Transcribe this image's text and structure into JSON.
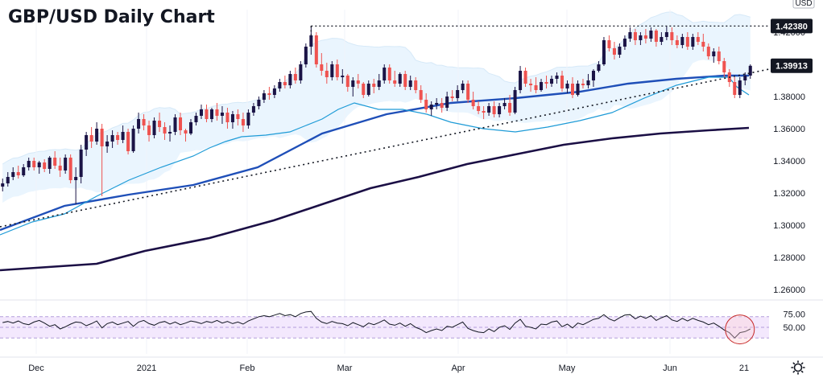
{
  "chart_data": {
    "type": "candlestick",
    "title": "GBP/USD Daily Chart",
    "currency_label": "USD",
    "price_axis": {
      "ylim": [
        1.254,
        1.434
      ],
      "ticks": [
        "1.42000",
        "1.40000",
        "1.38000",
        "1.36000",
        "1.34000",
        "1.32000",
        "1.30000",
        "1.28000",
        "1.26000"
      ]
    },
    "rsi_axis": {
      "ylim": [
        0,
        100
      ],
      "ticks": [
        "75.00",
        "50.00"
      ],
      "band": [
        30,
        70
      ]
    },
    "x_ticks": [
      "Dec",
      "2021",
      "Feb",
      "Mar",
      "Apr",
      "May",
      "Jun",
      "21"
    ],
    "resistance": {
      "value": 1.4238,
      "label": "1.42380"
    },
    "last_price": {
      "value": 1.39913,
      "label": "1.39913"
    },
    "trendline": {
      "start": 1.299,
      "end": 1.397
    },
    "candles": [
      [
        1.324,
        1.329,
        1.321,
        1.326
      ],
      [
        1.326,
        1.333,
        1.324,
        1.33
      ],
      [
        1.33,
        1.336,
        1.328,
        1.333
      ],
      [
        1.333,
        1.337,
        1.329,
        1.331
      ],
      [
        1.331,
        1.338,
        1.33,
        1.336
      ],
      [
        1.336,
        1.342,
        1.334,
        1.34
      ],
      [
        1.34,
        1.342,
        1.334,
        1.336
      ],
      [
        1.336,
        1.34,
        1.332,
        1.339
      ],
      [
        1.339,
        1.341,
        1.333,
        1.335
      ],
      [
        1.335,
        1.343,
        1.332,
        1.342
      ],
      [
        1.342,
        1.346,
        1.335,
        1.337
      ],
      [
        1.337,
        1.342,
        1.33,
        1.334
      ],
      [
        1.334,
        1.344,
        1.332,
        1.342
      ],
      [
        1.342,
        1.344,
        1.326,
        1.328
      ],
      [
        1.328,
        1.336,
        1.313,
        1.33
      ],
      [
        1.33,
        1.35,
        1.326,
        1.347
      ],
      [
        1.347,
        1.358,
        1.343,
        1.356
      ],
      [
        1.356,
        1.361,
        1.348,
        1.352
      ],
      [
        1.352,
        1.364,
        1.35,
        1.36
      ],
      [
        1.36,
        1.363,
        1.318,
        1.349
      ],
      [
        1.349,
        1.356,
        1.345,
        1.352
      ],
      [
        1.352,
        1.359,
        1.348,
        1.356
      ],
      [
        1.356,
        1.358,
        1.35,
        1.353
      ],
      [
        1.353,
        1.362,
        1.351,
        1.358
      ],
      [
        1.358,
        1.36,
        1.344,
        1.346
      ],
      [
        1.346,
        1.362,
        1.345,
        1.36
      ],
      [
        1.36,
        1.37,
        1.357,
        1.366
      ],
      [
        1.366,
        1.369,
        1.359,
        1.362
      ],
      [
        1.362,
        1.365,
        1.352,
        1.356
      ],
      [
        1.356,
        1.367,
        1.354,
        1.365
      ],
      [
        1.365,
        1.37,
        1.358,
        1.361
      ],
      [
        1.361,
        1.364,
        1.353,
        1.357
      ],
      [
        1.357,
        1.362,
        1.352,
        1.358
      ],
      [
        1.358,
        1.369,
        1.356,
        1.367
      ],
      [
        1.367,
        1.37,
        1.356,
        1.359
      ],
      [
        1.359,
        1.36,
        1.352,
        1.357
      ],
      [
        1.357,
        1.366,
        1.356,
        1.364
      ],
      [
        1.364,
        1.37,
        1.362,
        1.368
      ],
      [
        1.368,
        1.375,
        1.366,
        1.372
      ],
      [
        1.372,
        1.375,
        1.364,
        1.366
      ],
      [
        1.366,
        1.373,
        1.364,
        1.372
      ],
      [
        1.372,
        1.376,
        1.365,
        1.368
      ],
      [
        1.368,
        1.374,
        1.363,
        1.37
      ],
      [
        1.37,
        1.373,
        1.36,
        1.364
      ],
      [
        1.364,
        1.371,
        1.36,
        1.369
      ],
      [
        1.369,
        1.372,
        1.362,
        1.366
      ],
      [
        1.366,
        1.37,
        1.358,
        1.362
      ],
      [
        1.362,
        1.372,
        1.36,
        1.37
      ],
      [
        1.37,
        1.376,
        1.368,
        1.374
      ],
      [
        1.374,
        1.38,
        1.372,
        1.378
      ],
      [
        1.378,
        1.384,
        1.376,
        1.382
      ],
      [
        1.382,
        1.386,
        1.378,
        1.381
      ],
      [
        1.381,
        1.387,
        1.379,
        1.385
      ],
      [
        1.385,
        1.391,
        1.383,
        1.389
      ],
      [
        1.389,
        1.393,
        1.385,
        1.387
      ],
      [
        1.387,
        1.396,
        1.385,
        1.394
      ],
      [
        1.394,
        1.398,
        1.388,
        1.39
      ],
      [
        1.39,
        1.402,
        1.388,
        1.4
      ],
      [
        1.4,
        1.413,
        1.398,
        1.411
      ],
      [
        1.411,
        1.424,
        1.406,
        1.418
      ],
      [
        1.418,
        1.42,
        1.398,
        1.4
      ],
      [
        1.4,
        1.407,
        1.393,
        1.396
      ],
      [
        1.396,
        1.401,
        1.388,
        1.392
      ],
      [
        1.392,
        1.402,
        1.39,
        1.4
      ],
      [
        1.4,
        1.403,
        1.39,
        1.392
      ],
      [
        1.392,
        1.397,
        1.388,
        1.393
      ],
      [
        1.393,
        1.394,
        1.383,
        1.386
      ],
      [
        1.386,
        1.392,
        1.38,
        1.39
      ],
      [
        1.39,
        1.394,
        1.385,
        1.388
      ],
      [
        1.388,
        1.389,
        1.379,
        1.381
      ],
      [
        1.381,
        1.39,
        1.38,
        1.388
      ],
      [
        1.388,
        1.391,
        1.382,
        1.386
      ],
      [
        1.386,
        1.394,
        1.384,
        1.39
      ],
      [
        1.39,
        1.4,
        1.388,
        1.398
      ],
      [
        1.398,
        1.4,
        1.388,
        1.39
      ],
      [
        1.39,
        1.396,
        1.386,
        1.388
      ],
      [
        1.388,
        1.395,
        1.386,
        1.394
      ],
      [
        1.394,
        1.396,
        1.384,
        1.386
      ],
      [
        1.386,
        1.393,
        1.384,
        1.39
      ],
      [
        1.39,
        1.392,
        1.382,
        1.384
      ],
      [
        1.384,
        1.387,
        1.376,
        1.378
      ],
      [
        1.378,
        1.382,
        1.37,
        1.372
      ],
      [
        1.372,
        1.377,
        1.368,
        1.375
      ],
      [
        1.375,
        1.379,
        1.372,
        1.376
      ],
      [
        1.376,
        1.379,
        1.37,
        1.373
      ],
      [
        1.373,
        1.383,
        1.371,
        1.38
      ],
      [
        1.38,
        1.384,
        1.377,
        1.379
      ],
      [
        1.379,
        1.387,
        1.377,
        1.384
      ],
      [
        1.384,
        1.39,
        1.382,
        1.388
      ],
      [
        1.388,
        1.39,
        1.376,
        1.378
      ],
      [
        1.378,
        1.383,
        1.372,
        1.374
      ],
      [
        1.374,
        1.377,
        1.369,
        1.371
      ],
      [
        1.371,
        1.374,
        1.366,
        1.37
      ],
      [
        1.37,
        1.376,
        1.368,
        1.374
      ],
      [
        1.374,
        1.377,
        1.367,
        1.369
      ],
      [
        1.369,
        1.376,
        1.367,
        1.374
      ],
      [
        1.374,
        1.379,
        1.372,
        1.376
      ],
      [
        1.376,
        1.381,
        1.368,
        1.37
      ],
      [
        1.37,
        1.386,
        1.369,
        1.384
      ],
      [
        1.384,
        1.399,
        1.382,
        1.396
      ],
      [
        1.396,
        1.398,
        1.386,
        1.388
      ],
      [
        1.388,
        1.391,
        1.383,
        1.387
      ],
      [
        1.387,
        1.392,
        1.382,
        1.384
      ],
      [
        1.384,
        1.391,
        1.383,
        1.389
      ],
      [
        1.389,
        1.393,
        1.385,
        1.388
      ],
      [
        1.388,
        1.393,
        1.386,
        1.391
      ],
      [
        1.391,
        1.395,
        1.388,
        1.393
      ],
      [
        1.393,
        1.396,
        1.383,
        1.385
      ],
      [
        1.385,
        1.39,
        1.382,
        1.388
      ],
      [
        1.388,
        1.392,
        1.379,
        1.381
      ],
      [
        1.381,
        1.39,
        1.38,
        1.388
      ],
      [
        1.388,
        1.391,
        1.385,
        1.387
      ],
      [
        1.387,
        1.394,
        1.385,
        1.39
      ],
      [
        1.39,
        1.397,
        1.386,
        1.396
      ],
      [
        1.396,
        1.402,
        1.395,
        1.4
      ],
      [
        1.4,
        1.417,
        1.399,
        1.415
      ],
      [
        1.415,
        1.418,
        1.408,
        1.41
      ],
      [
        1.41,
        1.414,
        1.403,
        1.406
      ],
      [
        1.406,
        1.413,
        1.404,
        1.411
      ],
      [
        1.411,
        1.418,
        1.409,
        1.416
      ],
      [
        1.416,
        1.423,
        1.414,
        1.42
      ],
      [
        1.42,
        1.422,
        1.412,
        1.415
      ],
      [
        1.415,
        1.42,
        1.412,
        1.418
      ],
      [
        1.418,
        1.422,
        1.413,
        1.416
      ],
      [
        1.416,
        1.423,
        1.414,
        1.421
      ],
      [
        1.421,
        1.422,
        1.411,
        1.414
      ],
      [
        1.414,
        1.42,
        1.412,
        1.417
      ],
      [
        1.417,
        1.424,
        1.415,
        1.42
      ],
      [
        1.42,
        1.423,
        1.412,
        1.415
      ],
      [
        1.415,
        1.418,
        1.41,
        1.412
      ],
      [
        1.412,
        1.419,
        1.41,
        1.417
      ],
      [
        1.417,
        1.42,
        1.409,
        1.411
      ],
      [
        1.411,
        1.419,
        1.409,
        1.417
      ],
      [
        1.417,
        1.42,
        1.412,
        1.414
      ],
      [
        1.414,
        1.419,
        1.408,
        1.411
      ],
      [
        1.411,
        1.413,
        1.403,
        1.405
      ],
      [
        1.405,
        1.41,
        1.401,
        1.408
      ],
      [
        1.408,
        1.411,
        1.4,
        1.402
      ],
      [
        1.402,
        1.404,
        1.392,
        1.395
      ],
      [
        1.395,
        1.397,
        1.386,
        1.389
      ],
      [
        1.389,
        1.392,
        1.379,
        1.381
      ],
      [
        1.381,
        1.392,
        1.379,
        1.39
      ],
      [
        1.39,
        1.395,
        1.387,
        1.393
      ],
      [
        1.393,
        1.4,
        1.391,
        1.3991
      ]
    ],
    "ma_fast": {
      "points": [
        [
          0,
          1.294
        ],
        [
          40,
          1.302
        ],
        [
          80,
          1.307
        ],
        [
          120,
          1.318
        ],
        [
          160,
          1.328
        ],
        [
          200,
          1.336
        ],
        [
          240,
          1.343
        ],
        [
          260,
          1.348
        ],
        [
          280,
          1.352
        ],
        [
          300,
          1.355
        ],
        [
          330,
          1.356
        ],
        [
          360,
          1.358
        ],
        [
          380,
          1.362
        ],
        [
          400,
          1.366
        ],
        [
          420,
          1.372
        ],
        [
          440,
          1.376
        ],
        [
          470,
          1.372
        ],
        [
          500,
          1.372
        ],
        [
          530,
          1.369
        ],
        [
          560,
          1.364
        ],
        [
          600,
          1.36
        ],
        [
          640,
          1.358
        ],
        [
          680,
          1.361
        ],
        [
          720,
          1.365
        ],
        [
          760,
          1.37
        ],
        [
          800,
          1.379
        ],
        [
          840,
          1.387
        ],
        [
          880,
          1.392
        ],
        [
          905,
          1.392
        ],
        [
          915,
          1.386
        ],
        [
          930,
          1.381
        ]
      ]
    },
    "ma_mid": {
      "points": [
        [
          0,
          1.297
        ],
        [
          80,
          1.312
        ],
        [
          160,
          1.319
        ],
        [
          240,
          1.325
        ],
        [
          320,
          1.336
        ],
        [
          400,
          1.357
        ],
        [
          480,
          1.369
        ],
        [
          560,
          1.376
        ],
        [
          640,
          1.379
        ],
        [
          720,
          1.383
        ],
        [
          780,
          1.388
        ],
        [
          840,
          1.391
        ],
        [
          900,
          1.393
        ],
        [
          930,
          1.393
        ]
      ]
    },
    "ma_slow": {
      "points": [
        [
          0,
          1.272
        ],
        [
          60,
          1.274
        ],
        [
          120,
          1.276
        ],
        [
          180,
          1.284
        ],
        [
          260,
          1.292
        ],
        [
          340,
          1.303
        ],
        [
          400,
          1.313
        ],
        [
          460,
          1.323
        ],
        [
          520,
          1.33
        ],
        [
          580,
          1.338
        ],
        [
          640,
          1.344
        ],
        [
          700,
          1.35
        ],
        [
          760,
          1.354
        ],
        [
          820,
          1.357
        ],
        [
          880,
          1.359
        ],
        [
          930,
          1.3605
        ]
      ]
    },
    "rsi_values": [
      59,
      61,
      58,
      62,
      57,
      55,
      60,
      63,
      58,
      52,
      55,
      47,
      51,
      56,
      60,
      59,
      53,
      57,
      62,
      49,
      57,
      60,
      55,
      58,
      61,
      52,
      60,
      63,
      57,
      54,
      59,
      61,
      56,
      60,
      55,
      58,
      62,
      60,
      57,
      61,
      59,
      63,
      58,
      61,
      57,
      60,
      56,
      62,
      66,
      70,
      72,
      70,
      73,
      76,
      72,
      74,
      70,
      76,
      79,
      80,
      67,
      60,
      57,
      61,
      58,
      57,
      53,
      59,
      55,
      51,
      58,
      55,
      59,
      64,
      56,
      54,
      58,
      52,
      57,
      50,
      46,
      40,
      44,
      47,
      44,
      52,
      50,
      55,
      60,
      48,
      44,
      41,
      40,
      47,
      42,
      50,
      53,
      46,
      58,
      65,
      52,
      50,
      47,
      56,
      55,
      60,
      62,
      51,
      56,
      49,
      58,
      55,
      60,
      65,
      67,
      74,
      66,
      62,
      68,
      73,
      74,
      66,
      71,
      67,
      72,
      63,
      68,
      72,
      64,
      61,
      67,
      62,
      67,
      63,
      60,
      55,
      58,
      52,
      45,
      40,
      30,
      40,
      42,
      47
    ]
  }
}
